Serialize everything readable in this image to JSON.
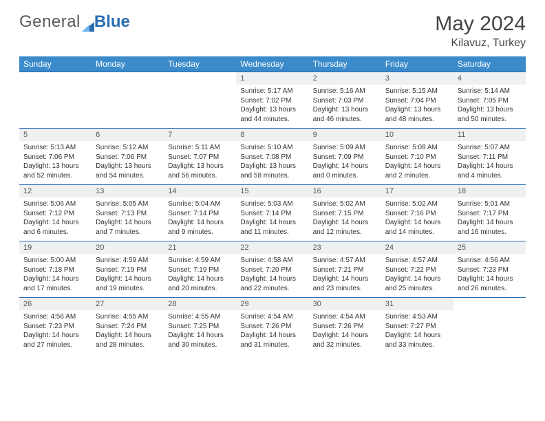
{
  "brand": {
    "part1": "General",
    "part2": "Blue"
  },
  "title": "May 2024",
  "location": "Kilavuz, Turkey",
  "header_color": "#3b8bca",
  "border_color": "#2a6db2",
  "daynum_bg": "#eef0f2",
  "days_of_week": [
    "Sunday",
    "Monday",
    "Tuesday",
    "Wednesday",
    "Thursday",
    "Friday",
    "Saturday"
  ],
  "weeks": [
    [
      null,
      null,
      null,
      {
        "n": "1",
        "sr": "Sunrise: 5:17 AM",
        "ss": "Sunset: 7:02 PM",
        "d1": "Daylight: 13 hours",
        "d2": "and 44 minutes."
      },
      {
        "n": "2",
        "sr": "Sunrise: 5:16 AM",
        "ss": "Sunset: 7:03 PM",
        "d1": "Daylight: 13 hours",
        "d2": "and 46 minutes."
      },
      {
        "n": "3",
        "sr": "Sunrise: 5:15 AM",
        "ss": "Sunset: 7:04 PM",
        "d1": "Daylight: 13 hours",
        "d2": "and 48 minutes."
      },
      {
        "n": "4",
        "sr": "Sunrise: 5:14 AM",
        "ss": "Sunset: 7:05 PM",
        "d1": "Daylight: 13 hours",
        "d2": "and 50 minutes."
      }
    ],
    [
      {
        "n": "5",
        "sr": "Sunrise: 5:13 AM",
        "ss": "Sunset: 7:06 PM",
        "d1": "Daylight: 13 hours",
        "d2": "and 52 minutes."
      },
      {
        "n": "6",
        "sr": "Sunrise: 5:12 AM",
        "ss": "Sunset: 7:06 PM",
        "d1": "Daylight: 13 hours",
        "d2": "and 54 minutes."
      },
      {
        "n": "7",
        "sr": "Sunrise: 5:11 AM",
        "ss": "Sunset: 7:07 PM",
        "d1": "Daylight: 13 hours",
        "d2": "and 56 minutes."
      },
      {
        "n": "8",
        "sr": "Sunrise: 5:10 AM",
        "ss": "Sunset: 7:08 PM",
        "d1": "Daylight: 13 hours",
        "d2": "and 58 minutes."
      },
      {
        "n": "9",
        "sr": "Sunrise: 5:09 AM",
        "ss": "Sunset: 7:09 PM",
        "d1": "Daylight: 14 hours",
        "d2": "and 0 minutes."
      },
      {
        "n": "10",
        "sr": "Sunrise: 5:08 AM",
        "ss": "Sunset: 7:10 PM",
        "d1": "Daylight: 14 hours",
        "d2": "and 2 minutes."
      },
      {
        "n": "11",
        "sr": "Sunrise: 5:07 AM",
        "ss": "Sunset: 7:11 PM",
        "d1": "Daylight: 14 hours",
        "d2": "and 4 minutes."
      }
    ],
    [
      {
        "n": "12",
        "sr": "Sunrise: 5:06 AM",
        "ss": "Sunset: 7:12 PM",
        "d1": "Daylight: 14 hours",
        "d2": "and 6 minutes."
      },
      {
        "n": "13",
        "sr": "Sunrise: 5:05 AM",
        "ss": "Sunset: 7:13 PM",
        "d1": "Daylight: 14 hours",
        "d2": "and 7 minutes."
      },
      {
        "n": "14",
        "sr": "Sunrise: 5:04 AM",
        "ss": "Sunset: 7:14 PM",
        "d1": "Daylight: 14 hours",
        "d2": "and 9 minutes."
      },
      {
        "n": "15",
        "sr": "Sunrise: 5:03 AM",
        "ss": "Sunset: 7:14 PM",
        "d1": "Daylight: 14 hours",
        "d2": "and 11 minutes."
      },
      {
        "n": "16",
        "sr": "Sunrise: 5:02 AM",
        "ss": "Sunset: 7:15 PM",
        "d1": "Daylight: 14 hours",
        "d2": "and 12 minutes."
      },
      {
        "n": "17",
        "sr": "Sunrise: 5:02 AM",
        "ss": "Sunset: 7:16 PM",
        "d1": "Daylight: 14 hours",
        "d2": "and 14 minutes."
      },
      {
        "n": "18",
        "sr": "Sunrise: 5:01 AM",
        "ss": "Sunset: 7:17 PM",
        "d1": "Daylight: 14 hours",
        "d2": "and 16 minutes."
      }
    ],
    [
      {
        "n": "19",
        "sr": "Sunrise: 5:00 AM",
        "ss": "Sunset: 7:18 PM",
        "d1": "Daylight: 14 hours",
        "d2": "and 17 minutes."
      },
      {
        "n": "20",
        "sr": "Sunrise: 4:59 AM",
        "ss": "Sunset: 7:19 PM",
        "d1": "Daylight: 14 hours",
        "d2": "and 19 minutes."
      },
      {
        "n": "21",
        "sr": "Sunrise: 4:59 AM",
        "ss": "Sunset: 7:19 PM",
        "d1": "Daylight: 14 hours",
        "d2": "and 20 minutes."
      },
      {
        "n": "22",
        "sr": "Sunrise: 4:58 AM",
        "ss": "Sunset: 7:20 PM",
        "d1": "Daylight: 14 hours",
        "d2": "and 22 minutes."
      },
      {
        "n": "23",
        "sr": "Sunrise: 4:57 AM",
        "ss": "Sunset: 7:21 PM",
        "d1": "Daylight: 14 hours",
        "d2": "and 23 minutes."
      },
      {
        "n": "24",
        "sr": "Sunrise: 4:57 AM",
        "ss": "Sunset: 7:22 PM",
        "d1": "Daylight: 14 hours",
        "d2": "and 25 minutes."
      },
      {
        "n": "25",
        "sr": "Sunrise: 4:56 AM",
        "ss": "Sunset: 7:23 PM",
        "d1": "Daylight: 14 hours",
        "d2": "and 26 minutes."
      }
    ],
    [
      {
        "n": "26",
        "sr": "Sunrise: 4:56 AM",
        "ss": "Sunset: 7:23 PM",
        "d1": "Daylight: 14 hours",
        "d2": "and 27 minutes."
      },
      {
        "n": "27",
        "sr": "Sunrise: 4:55 AM",
        "ss": "Sunset: 7:24 PM",
        "d1": "Daylight: 14 hours",
        "d2": "and 28 minutes."
      },
      {
        "n": "28",
        "sr": "Sunrise: 4:55 AM",
        "ss": "Sunset: 7:25 PM",
        "d1": "Daylight: 14 hours",
        "d2": "and 30 minutes."
      },
      {
        "n": "29",
        "sr": "Sunrise: 4:54 AM",
        "ss": "Sunset: 7:26 PM",
        "d1": "Daylight: 14 hours",
        "d2": "and 31 minutes."
      },
      {
        "n": "30",
        "sr": "Sunrise: 4:54 AM",
        "ss": "Sunset: 7:26 PM",
        "d1": "Daylight: 14 hours",
        "d2": "and 32 minutes."
      },
      {
        "n": "31",
        "sr": "Sunrise: 4:53 AM",
        "ss": "Sunset: 7:27 PM",
        "d1": "Daylight: 14 hours",
        "d2": "and 33 minutes."
      },
      null
    ]
  ]
}
